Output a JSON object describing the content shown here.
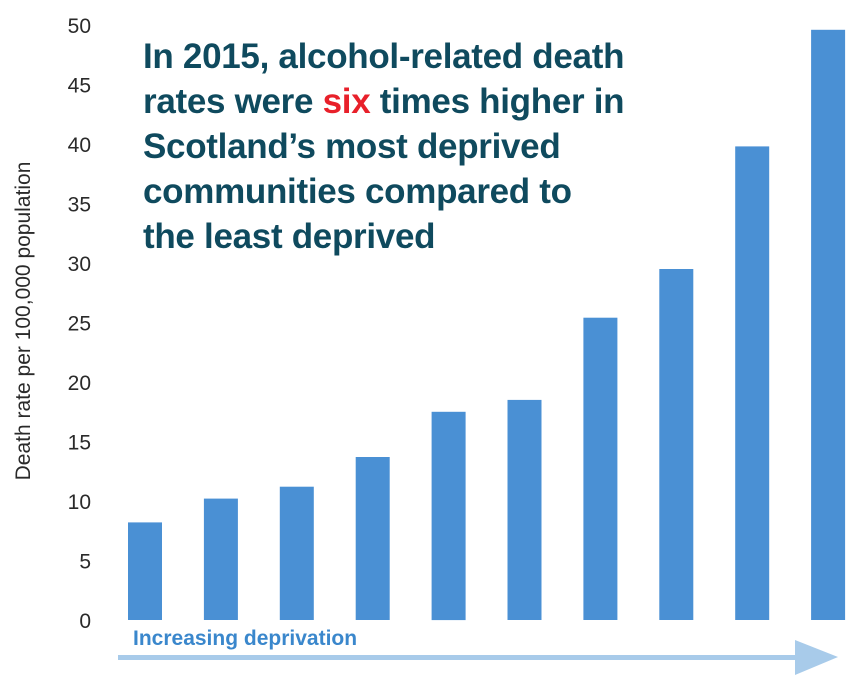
{
  "headline": {
    "line1": "In 2015, alcohol-related death",
    "line2_before": "rates were ",
    "line2_emph": "six",
    "line2_after": " times higher in",
    "line3": "Scotland’s most deprived",
    "line4": "communities compared to",
    "line5": "the least deprived",
    "emph_color": "#e8202a",
    "text_color": "#0f4a5e"
  },
  "chart_data": {
    "type": "bar",
    "categories": [
      "",
      "",
      "",
      "",
      "",
      "",
      "",
      "",
      "",
      ""
    ],
    "values": [
      8.2,
      10.2,
      11.2,
      13.7,
      17.5,
      18.5,
      25.4,
      29.5,
      39.8,
      49.6
    ],
    "ylabel": "Death rate per 100,000 population",
    "xlabel": "Increasing deprivation",
    "ylim": [
      0,
      50
    ],
    "yticks": [
      "0",
      "5",
      "10",
      "15",
      "20",
      "25",
      "30",
      "35",
      "40",
      "45",
      "50"
    ],
    "grid": false,
    "bar_color": "#4a90d4",
    "arrow_color": "#a8cbea"
  }
}
